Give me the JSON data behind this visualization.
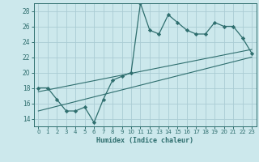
{
  "xlabel": "Humidex (Indice chaleur)",
  "background_color": "#cce8ec",
  "line_color": "#2e6e6e",
  "grid_color": "#aaccd4",
  "xlim": [
    -0.5,
    23.5
  ],
  "ylim": [
    13.0,
    29.0
  ],
  "xticks": [
    0,
    1,
    2,
    3,
    4,
    5,
    6,
    7,
    8,
    9,
    10,
    11,
    12,
    13,
    14,
    15,
    16,
    17,
    18,
    19,
    20,
    21,
    22,
    23
  ],
  "yticks": [
    14,
    16,
    18,
    20,
    22,
    24,
    26,
    28
  ],
  "main_x": [
    0,
    1,
    2,
    3,
    4,
    5,
    6,
    7,
    8,
    9,
    10,
    11,
    12,
    13,
    14,
    15,
    16,
    17,
    18,
    19,
    20,
    21,
    22,
    23
  ],
  "main_y": [
    18,
    18,
    16.5,
    15,
    15,
    15.5,
    13.5,
    16.5,
    19,
    19.5,
    20,
    29,
    25.5,
    25,
    27.5,
    26.5,
    25.5,
    25,
    25,
    26.5,
    26,
    26,
    24.5,
    22.5
  ],
  "line1_x": [
    0,
    23
  ],
  "line1_y": [
    17.5,
    23.0
  ],
  "line2_x": [
    0,
    23
  ],
  "line2_y": [
    15.0,
    22.0
  ]
}
